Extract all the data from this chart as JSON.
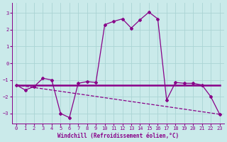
{
  "xlabel": "Windchill (Refroidissement éolien,°C)",
  "background_color": "#caeaea",
  "grid_color": "#aad4d4",
  "line_color": "#880088",
  "x_values": [
    0,
    1,
    2,
    3,
    4,
    5,
    6,
    7,
    8,
    9,
    10,
    11,
    12,
    13,
    14,
    15,
    16,
    17,
    18,
    19,
    20,
    21,
    22,
    23
  ],
  "series_jagged": [
    -1.3,
    -1.6,
    -1.4,
    -0.9,
    -1.0,
    -3.0,
    -3.25,
    -1.2,
    -1.1,
    -1.15,
    2.3,
    2.5,
    2.65,
    2.1,
    2.6,
    3.05,
    2.65,
    -2.2,
    -1.15,
    -1.2,
    -1.2,
    -1.3,
    -2.0,
    -3.05
  ],
  "series_horiz": [
    -1.3,
    -1.3,
    -1.3,
    -1.3,
    -1.3,
    -1.3,
    -1.3,
    -1.3,
    -1.3,
    -1.3,
    -1.3,
    -1.3,
    -1.3,
    -1.3,
    -1.3,
    -1.3,
    -1.3,
    -1.3,
    -1.3,
    -1.3,
    -1.3,
    -1.3,
    -1.3,
    -1.3
  ],
  "trend_x": [
    0,
    23
  ],
  "trend_y": [
    -1.3,
    -3.05
  ],
  "ylim": [
    -3.6,
    3.6
  ],
  "yticks": [
    -3,
    -2,
    -1,
    0,
    1,
    2,
    3
  ],
  "xticks": [
    0,
    1,
    2,
    3,
    4,
    5,
    6,
    7,
    8,
    9,
    10,
    11,
    12,
    13,
    14,
    15,
    16,
    17,
    18,
    19,
    20,
    21,
    22,
    23
  ]
}
